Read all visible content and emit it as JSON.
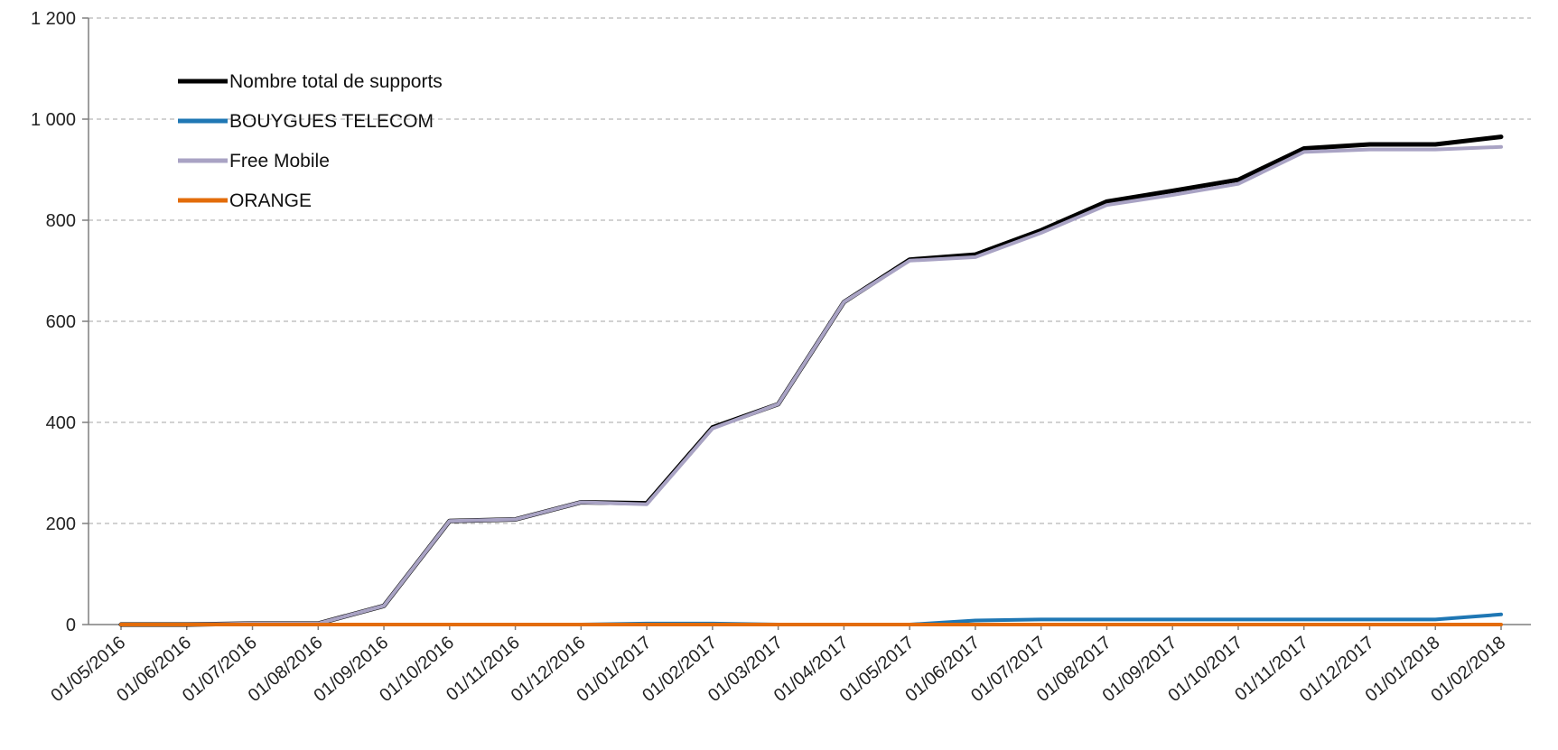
{
  "chart_data": {
    "type": "line",
    "title": "",
    "xlabel": "",
    "ylabel": "",
    "categories": [
      "01/05/2016",
      "01/06/2016",
      "01/07/2016",
      "01/08/2016",
      "01/09/2016",
      "01/10/2016",
      "01/11/2016",
      "01/12/2016",
      "01/01/2017",
      "01/02/2017",
      "01/03/2017",
      "01/04/2017",
      "01/05/2017",
      "01/06/2017",
      "01/07/2017",
      "01/08/2017",
      "01/09/2017",
      "01/10/2017",
      "01/11/2017",
      "01/12/2017",
      "01/01/2018",
      "01/02/2018"
    ],
    "ylim": [
      0,
      1200
    ],
    "yticks": [
      0,
      200,
      400,
      600,
      800,
      1000,
      1200
    ],
    "ytick_labels": [
      "0",
      "200",
      "400",
      "600",
      "800",
      "1 000",
      "1 200"
    ],
    "grid": true,
    "legend_position": "top-left",
    "series": [
      {
        "name": "Nombre total de supports",
        "color": "#000000",
        "values": [
          0,
          0,
          2,
          2,
          37,
          205,
          208,
          242,
          240,
          390,
          436,
          638,
          722,
          732,
          780,
          837,
          858,
          880,
          942,
          950,
          950,
          965
        ]
      },
      {
        "name": "BOUYGUES TELECOM",
        "color": "#1f77b4",
        "values": [
          0,
          0,
          0,
          0,
          0,
          0,
          0,
          0,
          2,
          2,
          0,
          0,
          0,
          8,
          10,
          10,
          10,
          10,
          10,
          10,
          10,
          20
        ]
      },
      {
        "name": "Free Mobile",
        "color": "#a9a3c4",
        "values": [
          0,
          0,
          2,
          2,
          37,
          205,
          208,
          242,
          238,
          388,
          436,
          638,
          720,
          727,
          775,
          830,
          850,
          872,
          935,
          940,
          940,
          945
        ]
      },
      {
        "name": "ORANGE",
        "color": "#e36c0a",
        "values": [
          0,
          0,
          0,
          0,
          0,
          0,
          0,
          0,
          0,
          0,
          0,
          0,
          0,
          0,
          0,
          0,
          0,
          0,
          0,
          0,
          0,
          0
        ]
      }
    ]
  }
}
